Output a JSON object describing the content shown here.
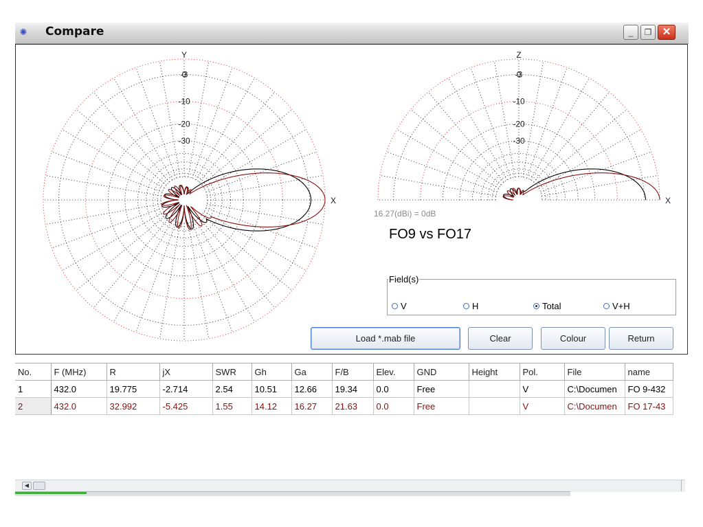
{
  "window": {
    "title": "Compare",
    "icon": "atom-icon",
    "controls": [
      "minimize-icon",
      "restore-icon",
      "close-icon"
    ]
  },
  "plot": {
    "reference": "16.27(dBi) = 0dB",
    "heading": "FO9 vs FO17",
    "azimuth": {
      "axis_top": "Y",
      "axis_right": "X",
      "ring_labels": [
        "0",
        "-3",
        "-10",
        "-20",
        "-30"
      ]
    },
    "elevation": {
      "axis_top": "Z",
      "axis_right": "X",
      "ring_labels": [
        "0",
        "-3",
        "-10",
        "-20",
        "-30"
      ]
    },
    "series_colors": {
      "1": "#000000",
      "2": "#8a1010"
    },
    "grid_color_red": "#d63030",
    "grid_color_black": "#333333"
  },
  "fields": {
    "legend": "Field(s)",
    "options": [
      {
        "label": "V",
        "selected": false
      },
      {
        "label": "H",
        "selected": false
      },
      {
        "label": "Total",
        "selected": true
      },
      {
        "label": "V+H",
        "selected": false
      }
    ]
  },
  "buttons": {
    "load": "Load *.mab file",
    "clear": "Clear",
    "colour": "Colour",
    "return": "Return"
  },
  "table": {
    "columns": [
      "No.",
      "F (MHz)",
      "R",
      "jX",
      "SWR",
      "Gh",
      "Ga",
      "F/B",
      "Elev.",
      "GND",
      "Height",
      "Pol.",
      "File",
      "name"
    ],
    "rows": [
      {
        "color": "#000000",
        "cells": [
          "1",
          "432.0",
          "19.775",
          "-2.714",
          "2.54",
          "10.51",
          "12.66",
          "19.34",
          "0.0",
          "Free",
          "",
          "V",
          "C:\\Documen",
          "FO 9-432"
        ]
      },
      {
        "color": "#8a1010",
        "cells": [
          "2",
          "432.0",
          "32.992",
          "-5.425",
          "1.55",
          "14.12",
          "16.27",
          "21.63",
          "0.0",
          "Free",
          "",
          "V",
          "C:\\Documen",
          "FO 17-43"
        ]
      }
    ]
  }
}
